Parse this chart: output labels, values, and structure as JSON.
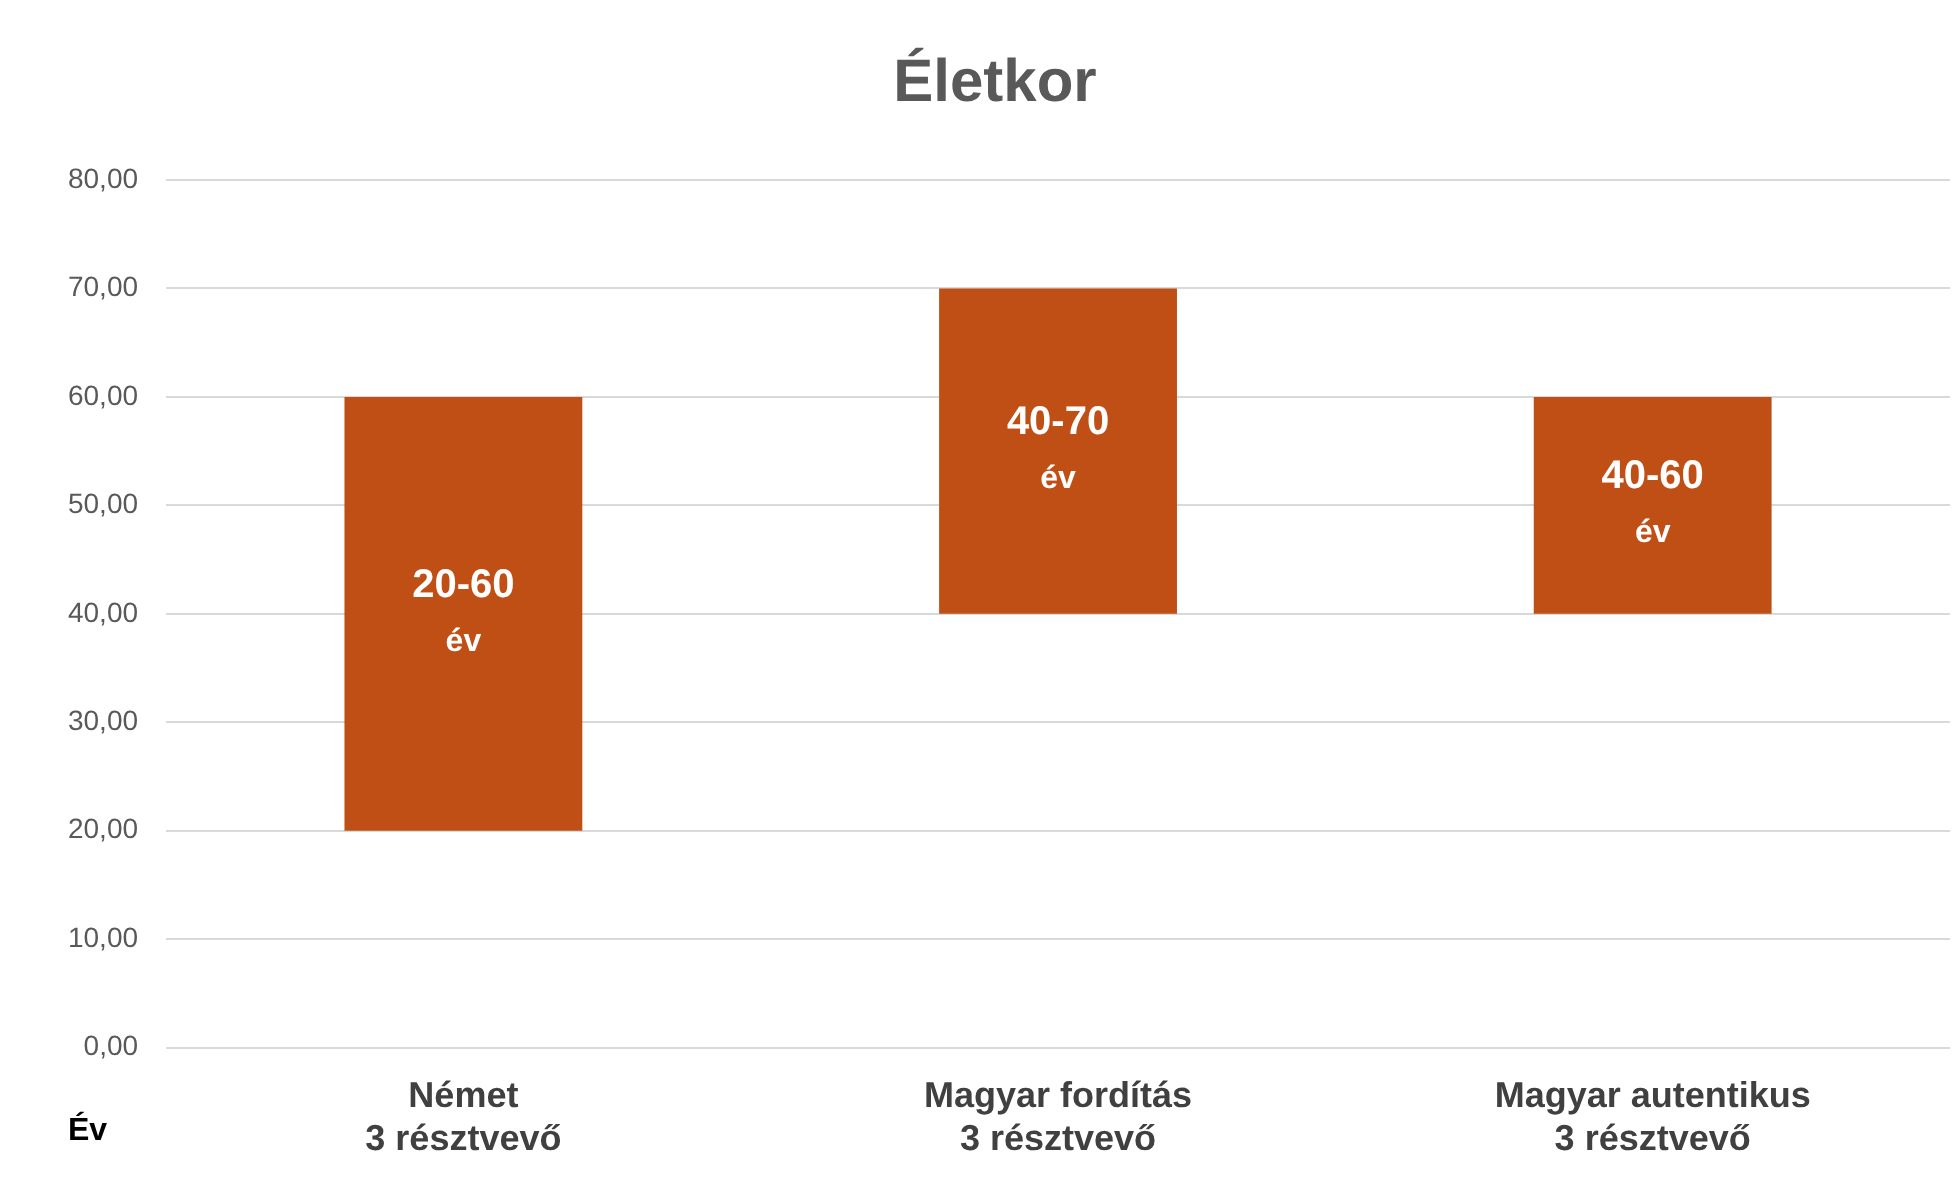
{
  "chart_data": {
    "type": "bar",
    "title": "Életkor",
    "ylabel": "Év",
    "categories": [
      "Német\n3 résztvevő",
      "Magyar fordítás\n3 résztvevő",
      "Magyar autentikus\n3 résztvevő"
    ],
    "values": [
      40,
      30,
      20
    ],
    "base": [
      20,
      40,
      40
    ],
    "color": "#c04f15",
    "value_labels": [
      "20-60\név",
      "40-70\név",
      "40-60\név"
    ],
    "ylim": [
      0,
      80
    ],
    "yticks": [
      {
        "value": 0,
        "label": "0,00"
      },
      {
        "value": 10,
        "label": "10,00"
      },
      {
        "value": 20,
        "label": "20,00"
      },
      {
        "value": 30,
        "label": "30,00"
      },
      {
        "value": 40,
        "label": "40,00"
      },
      {
        "value": 50,
        "label": "50,00"
      },
      {
        "value": 60,
        "label": "60,00"
      },
      {
        "value": 70,
        "label": "70,00"
      },
      {
        "value": 80,
        "label": "80,00"
      }
    ],
    "grid": "y",
    "legend": false
  }
}
